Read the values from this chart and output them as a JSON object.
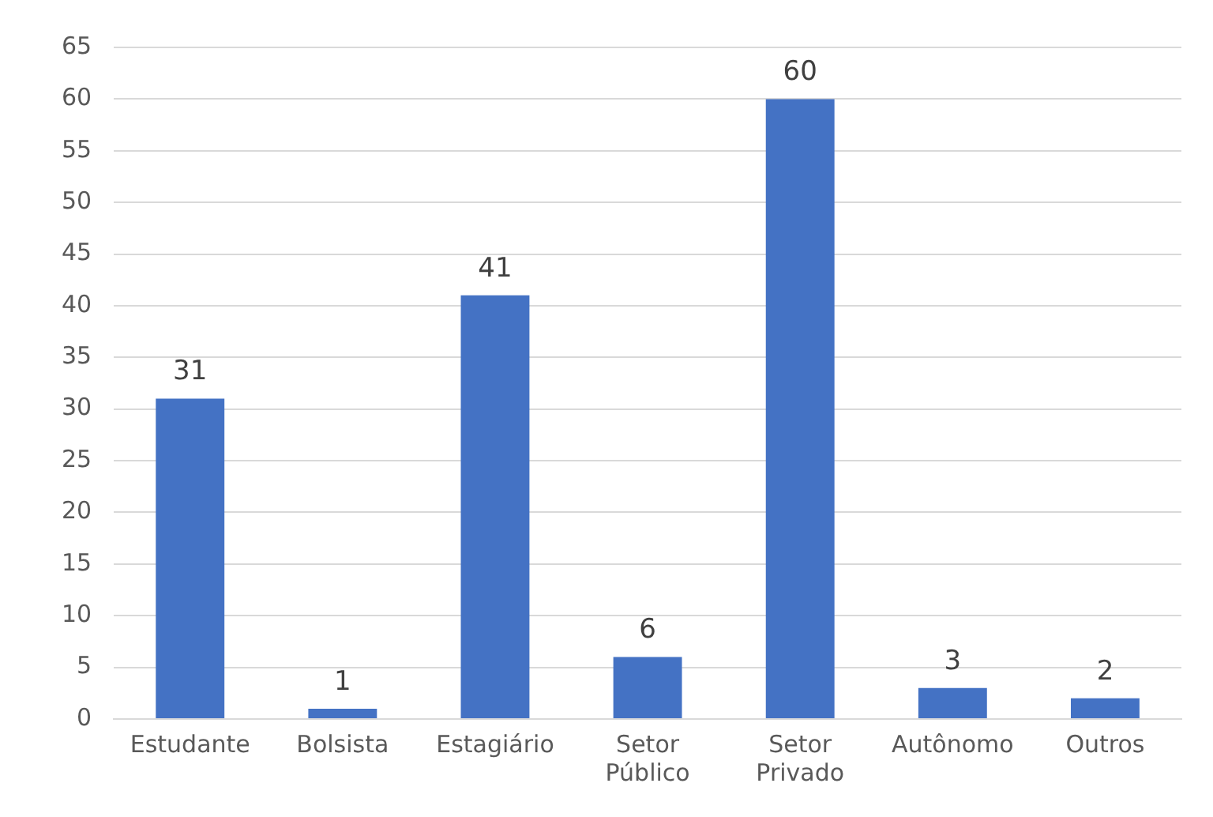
{
  "chart_data": {
    "type": "bar",
    "categories": [
      "Estudante",
      "Bolsista",
      "Estagiário",
      "Setor Público",
      "Setor Privado",
      "Autônomo",
      "Outros"
    ],
    "values": [
      31,
      1,
      41,
      6,
      60,
      3,
      2
    ],
    "color": "#4472c4",
    "ylim": [
      0,
      65
    ],
    "yticks": [
      0,
      5,
      10,
      15,
      20,
      25,
      30,
      35,
      40,
      45,
      50,
      55,
      60,
      65
    ],
    "grid": "y",
    "data_labels": true,
    "legend": false
  }
}
